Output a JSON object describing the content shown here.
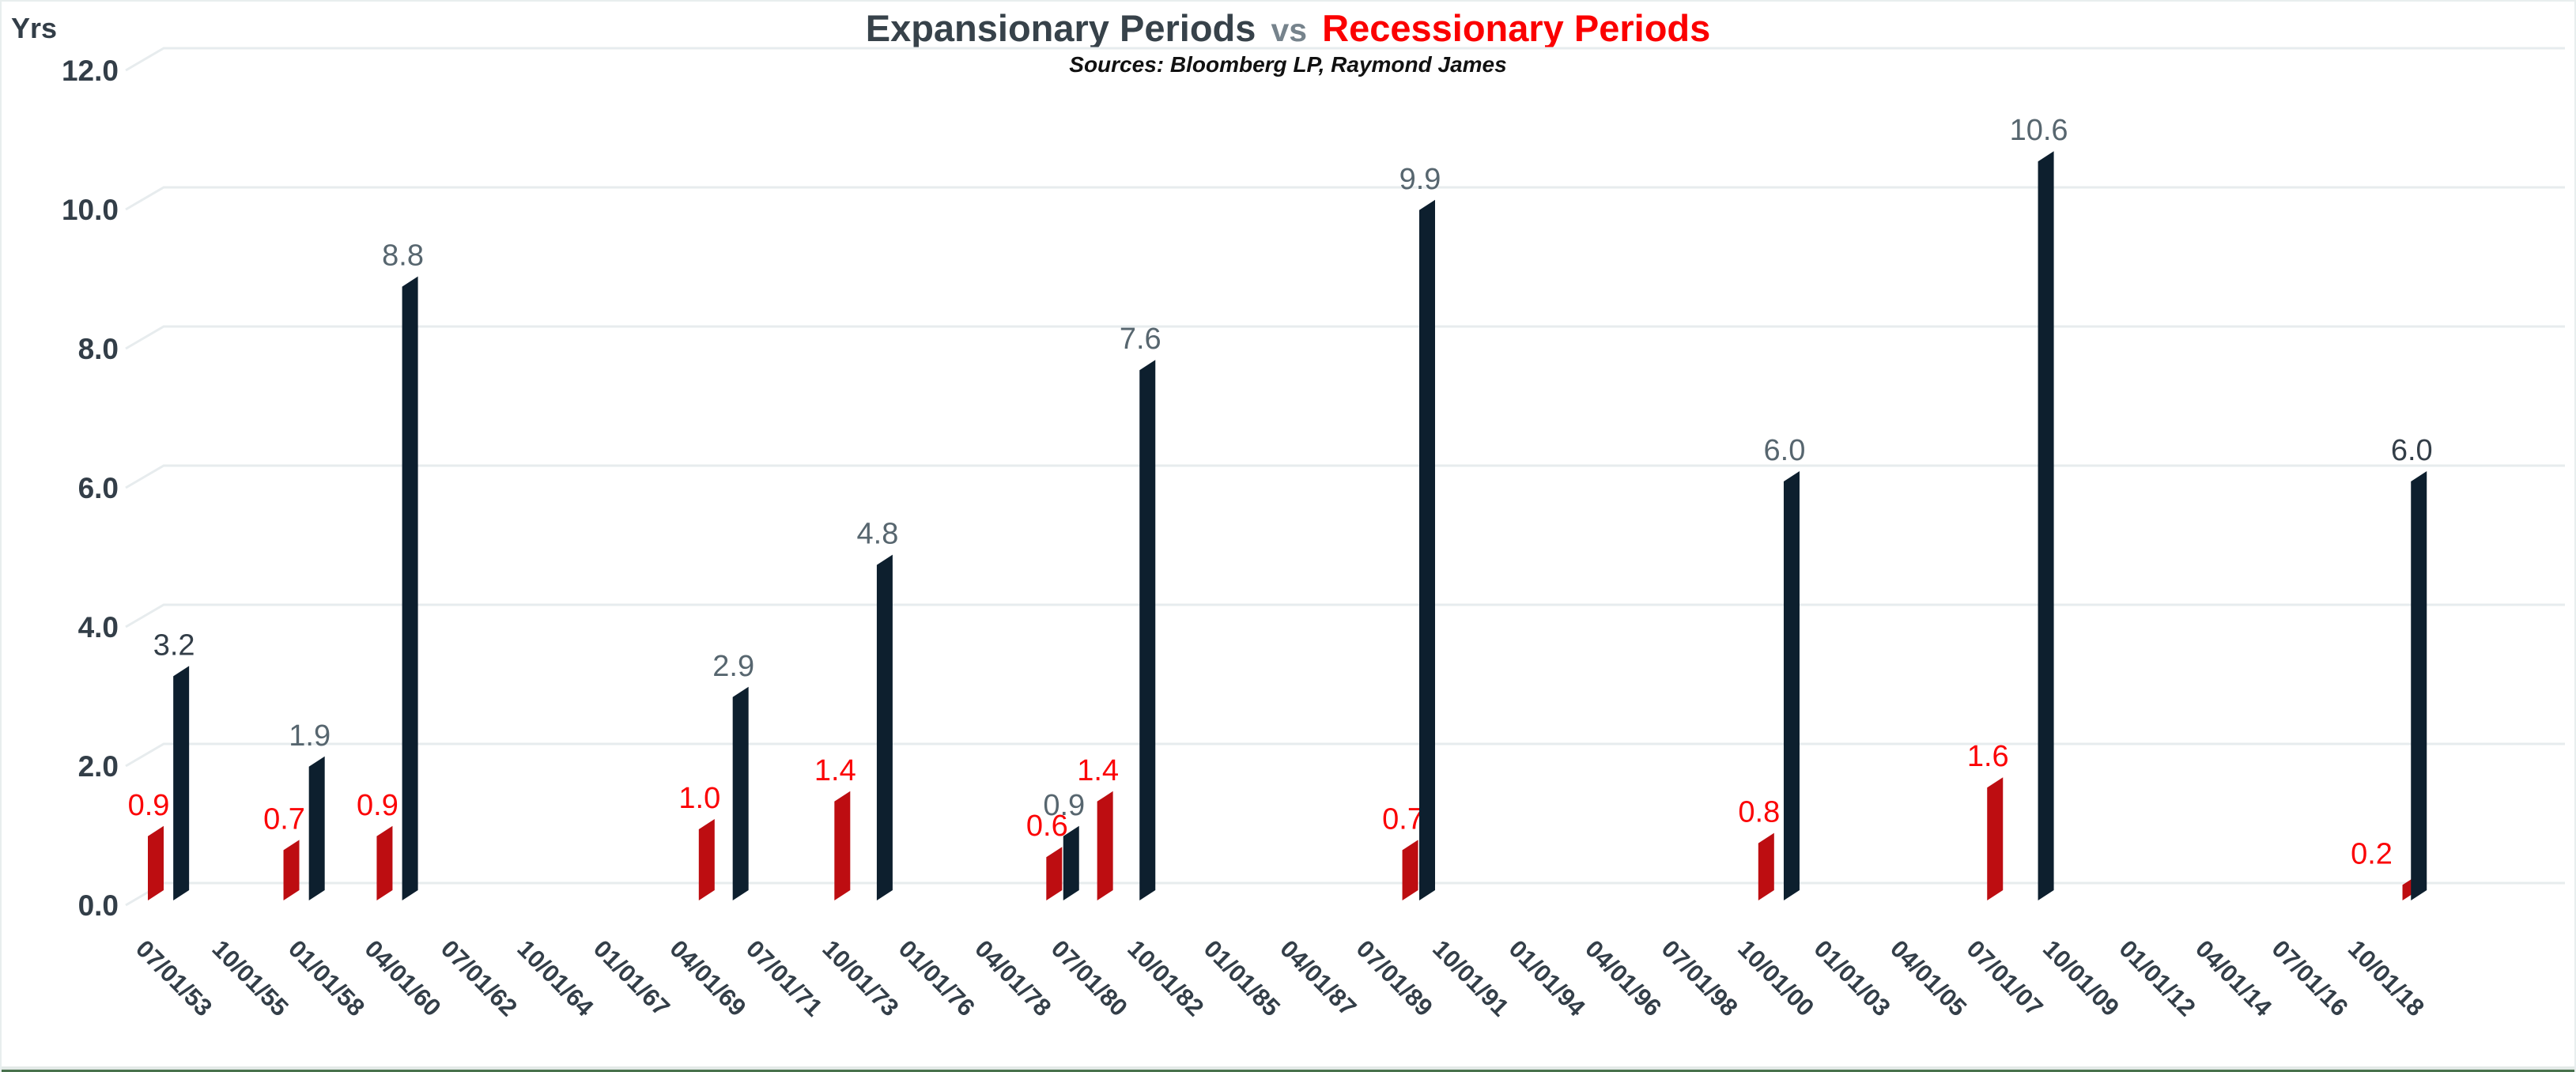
{
  "title": {
    "part1": "Expansionary Periods",
    "separator": "vs",
    "part2": "Recessionary Periods"
  },
  "subtitle": "Sources: Bloomberg LP, Raymond James",
  "colors": {
    "expansion_bar": "#0d1f2e",
    "recession_bar": "#bd0d11",
    "expansion_label": "#57666f",
    "expansion_label_dark": "#333e48",
    "recession_label": "#fb0305",
    "axis_text": "#333e48",
    "gridline": "#e7ecee",
    "title_dark": "#37424a",
    "title_vs": "#76838c",
    "title_red": "#fb0000"
  },
  "chart_data": {
    "type": "bar",
    "title": "Expansionary Periods vs Recessionary Periods",
    "subtitle": "Sources: Bloomberg LP, Raymond James",
    "ylabel": "Yrs",
    "xlabel": "",
    "ylim": [
      0,
      12
    ],
    "grid": true,
    "legend_position": "none",
    "style_3d": true,
    "y_ticks": [
      {
        "v": 0,
        "label": "0.0"
      },
      {
        "v": 2,
        "label": "2.0"
      },
      {
        "v": 4,
        "label": "4.0"
      },
      {
        "v": 6,
        "label": "6.0"
      },
      {
        "v": 8,
        "label": "8.0"
      },
      {
        "v": 10,
        "label": "10.0"
      },
      {
        "v": 12,
        "label": "12.0"
      }
    ],
    "x_tick_labels": [
      "07/01/53",
      "10/01/55",
      "01/01/58",
      "04/01/60",
      "07/01/62",
      "10/01/64",
      "01/01/67",
      "04/01/69",
      "07/01/71",
      "10/01/73",
      "01/01/76",
      "04/01/78",
      "07/01/80",
      "10/01/82",
      "01/01/85",
      "04/01/87",
      "07/01/89",
      "10/01/91",
      "01/01/94",
      "04/01/96",
      "07/01/98",
      "10/01/00",
      "01/01/03",
      "04/01/05",
      "07/01/07",
      "10/01/09",
      "01/01/12",
      "04/01/14",
      "07/01/16",
      "10/01/18"
    ],
    "quarters_per_x_tick": 9,
    "series": [
      {
        "name": "Recessionary Periods",
        "color": "#bd0d11",
        "points": [
          {
            "date": "07/01/53",
            "q": 0,
            "value": 0.9
          },
          {
            "date": "07/01/57",
            "q": 16,
            "value": 0.7
          },
          {
            "date": "04/01/60",
            "q": 27,
            "value": 0.9
          },
          {
            "date": "10/01/69",
            "q": 65,
            "value": 1.0
          },
          {
            "date": "10/01/73",
            "q": 81,
            "value": 1.4
          },
          {
            "date": "01/01/80",
            "q": 106,
            "value": 0.6
          },
          {
            "date": "07/01/81",
            "q": 112,
            "value": 1.4
          },
          {
            "date": "07/01/90",
            "q": 148,
            "value": 0.7
          },
          {
            "date": "01/01/01",
            "q": 190,
            "value": 0.8
          },
          {
            "date": "10/01/07",
            "q": 217,
            "value": 1.6
          },
          {
            "date": "01/01/20",
            "q": 266,
            "value": 0.2,
            "label_dx": -40
          }
        ]
      },
      {
        "name": "Expansionary Periods",
        "color": "#0d1f2e",
        "points": [
          {
            "date": "04/01/54",
            "q": 3,
            "value": 3.2,
            "label_style": "dark"
          },
          {
            "date": "04/01/58",
            "q": 19,
            "value": 1.9
          },
          {
            "date": "01/01/61",
            "q": 30,
            "value": 8.8
          },
          {
            "date": "10/01/70",
            "q": 69,
            "value": 2.9
          },
          {
            "date": "01/01/75",
            "q": 86,
            "value": 4.8
          },
          {
            "date": "07/01/80",
            "q": 108,
            "value": 0.9
          },
          {
            "date": "10/01/82",
            "q": 117,
            "value": 7.6
          },
          {
            "date": "01/01/91",
            "q": 150,
            "value": 9.9
          },
          {
            "date": "10/01/01",
            "q": 193,
            "value": 6.0
          },
          {
            "date": "04/01/09",
            "q": 223,
            "value": 10.6
          },
          {
            "date": "04/01/20",
            "q": 267,
            "value": 6.0,
            "label_style": "dark"
          }
        ]
      }
    ]
  }
}
